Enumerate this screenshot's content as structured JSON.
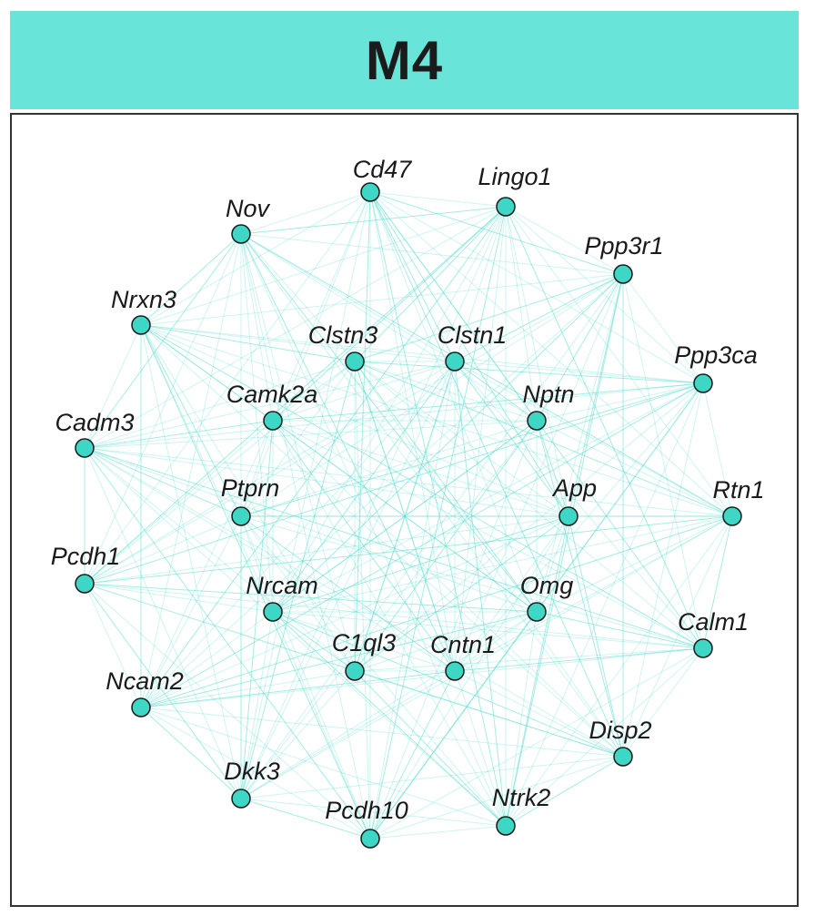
{
  "module": {
    "title": "M4",
    "header_color": "#69e4d9",
    "node_color": "#3ed6c4",
    "edge_color": "#5cdccf"
  },
  "genes": [
    "Cd47",
    "Lingo1",
    "Nov",
    "Ppp3r1",
    "Nrxn3",
    "Clstn3",
    "Clstn1",
    "Ppp3ca",
    "Camk2a",
    "Nptn",
    "Cadm3",
    "Ptprn",
    "App",
    "Rtn1",
    "Pcdh1",
    "Nrcam",
    "Omg",
    "Calm1",
    "C1ql3",
    "Cntn1",
    "Ncam2",
    "Disp2",
    "Dkk3",
    "Pcdh10",
    "Ntrk2"
  ]
}
